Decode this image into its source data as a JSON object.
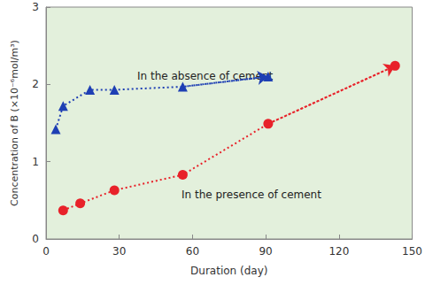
{
  "chart_data": {
    "type": "scatter",
    "x_label": "Duration (day)",
    "y_label": "Concentration of B (×10⁻⁶mol/m³)",
    "xlim": [
      0,
      150
    ],
    "xticks": [
      0,
      30,
      60,
      90,
      120,
      150
    ],
    "ylim": [
      0,
      3
    ],
    "yticks": [
      0,
      1,
      2,
      3
    ],
    "grid": false,
    "line_style": "dotted",
    "series": [
      {
        "name": "In the absence of cement",
        "color": "#1e3fb4",
        "marker": "triangle",
        "x": [
          4,
          7,
          18,
          28,
          56,
          91
        ],
        "values": [
          1.42,
          1.72,
          1.93,
          1.93,
          1.97,
          2.1
        ]
      },
      {
        "name": "In the presence of cement",
        "color": "#e8222a",
        "marker": "circle",
        "x": [
          7,
          14,
          28,
          56,
          91,
          143
        ],
        "values": [
          0.37,
          0.46,
          0.63,
          0.83,
          1.49,
          2.24
        ]
      }
    ]
  }
}
